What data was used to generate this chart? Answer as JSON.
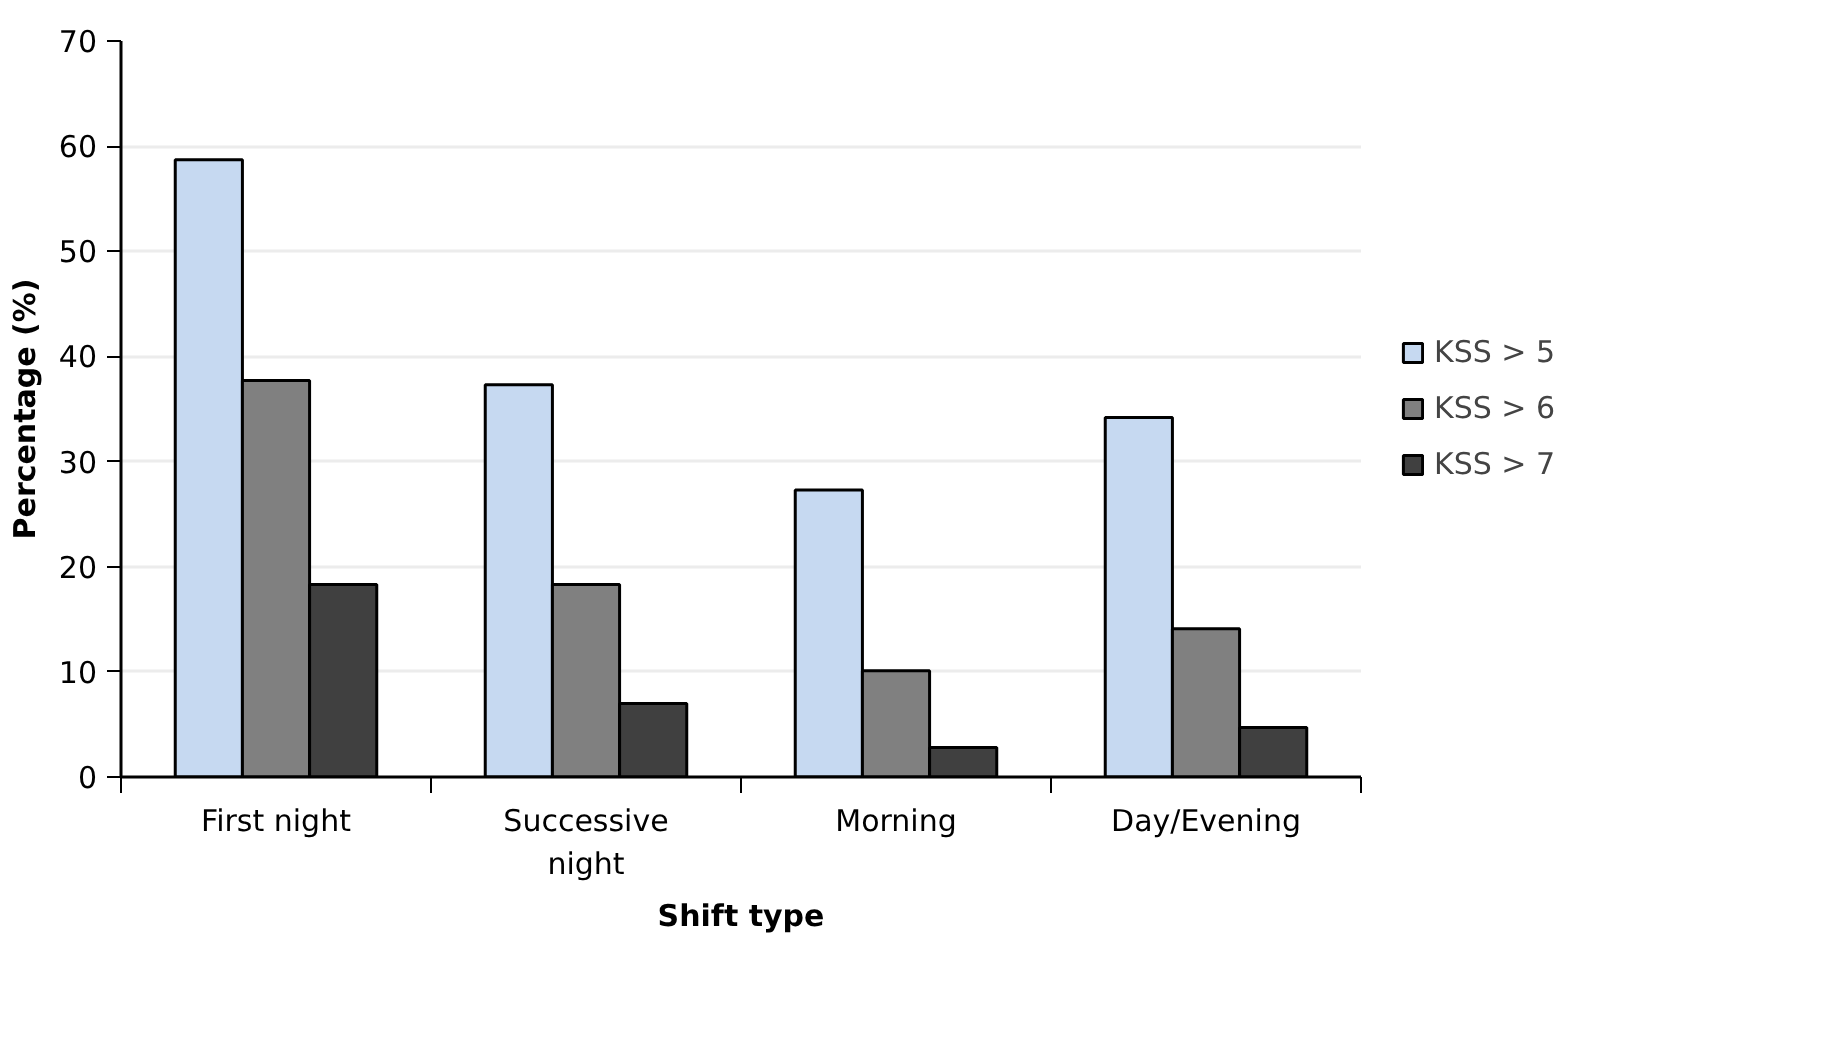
{
  "chart_data": {
    "type": "bar",
    "xlabel": "Shift type",
    "ylabel": "Percentage (%)",
    "categories": [
      "First night",
      "Successive night",
      "Morning",
      "Day/Evening"
    ],
    "series": [
      {
        "name": "KSS > 5",
        "color": "#c6d9f1",
        "values": [
          58.7,
          37.3,
          27.3,
          34.2
        ]
      },
      {
        "name": "KSS > 6",
        "color": "#808080",
        "values": [
          37.7,
          18.3,
          10.1,
          14.1
        ]
      },
      {
        "name": "KSS > 7",
        "color": "#404040",
        "values": [
          18.3,
          7.0,
          2.8,
          4.7
        ]
      }
    ],
    "ylim": [
      0,
      70
    ],
    "yticks": [
      0,
      10,
      20,
      30,
      40,
      50,
      60,
      70
    ],
    "grid": "y",
    "legend": "right"
  }
}
